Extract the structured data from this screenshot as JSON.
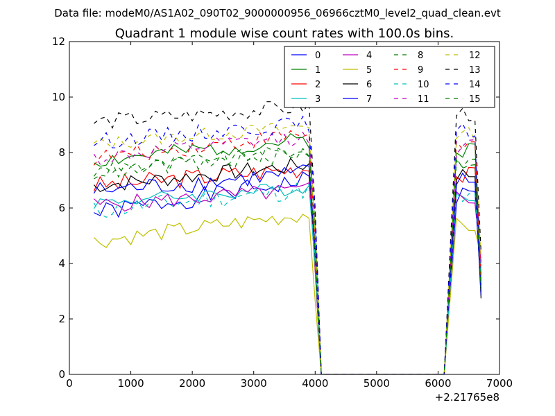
{
  "chart_data": {
    "type": "line",
    "suptitle": "Data file: modeM0/AS1A02_090T02_9000000956_06966cztM0_level2_quad_clean.evt",
    "title": "Quadrant 1 module wise count rates with 100.0s bins.",
    "xlabel": "",
    "ylabel": "",
    "x_offset_label": "+2.21765e8",
    "xlim": [
      0,
      7000
    ],
    "ylim": [
      0,
      12
    ],
    "x_ticks": [
      0,
      1000,
      2000,
      3000,
      4000,
      5000,
      6000,
      7000
    ],
    "y_ticks": [
      0,
      2,
      4,
      6,
      8,
      10,
      12
    ],
    "legend_position": "top-right",
    "series": [
      {
        "name": "0",
        "color": "#0000ff",
        "dash": "solid",
        "base": 5.8,
        "slope": 0.55,
        "amp": 0.35,
        "seed": 1
      },
      {
        "name": "1",
        "color": "#008000",
        "dash": "solid",
        "base": 7.7,
        "slope": 0.35,
        "amp": 0.3,
        "seed": 2
      },
      {
        "name": "2",
        "color": "#ff0000",
        "dash": "solid",
        "base": 6.8,
        "slope": 0.3,
        "amp": 0.35,
        "seed": 3
      },
      {
        "name": "3",
        "color": "#00bfbf",
        "dash": "solid",
        "base": 6.2,
        "slope": 0.25,
        "amp": 0.25,
        "seed": 4
      },
      {
        "name": "4",
        "color": "#bf00bf",
        "dash": "solid",
        "base": 6.1,
        "slope": 0.25,
        "amp": 0.3,
        "seed": 5
      },
      {
        "name": "5",
        "color": "#bfbf00",
        "dash": "solid",
        "base": 4.8,
        "slope": 0.45,
        "amp": 0.3,
        "seed": 6
      },
      {
        "name": "6",
        "color": "#000000",
        "dash": "solid",
        "base": 6.8,
        "slope": 0.35,
        "amp": 0.3,
        "seed": 7
      },
      {
        "name": "7",
        "color": "#0000ff",
        "dash": "solid",
        "base": 6.6,
        "slope": 0.3,
        "amp": 0.35,
        "seed": 8
      },
      {
        "name": "8",
        "color": "#008000",
        "dash": "dash",
        "base": 7.3,
        "slope": 0.35,
        "amp": 0.3,
        "seed": 9
      },
      {
        "name": "9",
        "color": "#ff0000",
        "dash": "dash",
        "base": 7.8,
        "slope": 0.4,
        "amp": 0.3,
        "seed": 10
      },
      {
        "name": "10",
        "color": "#00bfbf",
        "dash": "dash",
        "base": 5.9,
        "slope": 0.35,
        "amp": 0.35,
        "seed": 11
      },
      {
        "name": "11",
        "color": "#bf00bf",
        "dash": "dash",
        "base": 7.8,
        "slope": 0.35,
        "amp": 0.3,
        "seed": 12
      },
      {
        "name": "12",
        "color": "#bfbf00",
        "dash": "dash",
        "base": 8.3,
        "slope": 0.3,
        "amp": 0.25,
        "seed": 13
      },
      {
        "name": "13",
        "color": "#000000",
        "dash": "dash",
        "base": 9.1,
        "slope": 0.25,
        "amp": 0.3,
        "seed": 14
      },
      {
        "name": "14",
        "color": "#0000ff",
        "dash": "dash",
        "base": 8.4,
        "slope": 0.3,
        "amp": 0.3,
        "seed": 15
      },
      {
        "name": "15",
        "color": "#008000",
        "dash": "dash",
        "base": 7.3,
        "slope": 0.3,
        "amp": 0.3,
        "seed": 16
      }
    ],
    "time_segments": {
      "first": {
        "start": 400,
        "end": 3900,
        "step": 100
      },
      "gap_start": 4100,
      "gap_end": 6100,
      "second": {
        "start": 6300,
        "end": 6600,
        "step": 100
      },
      "last_x": 6700,
      "drop_x": 4000
    }
  }
}
